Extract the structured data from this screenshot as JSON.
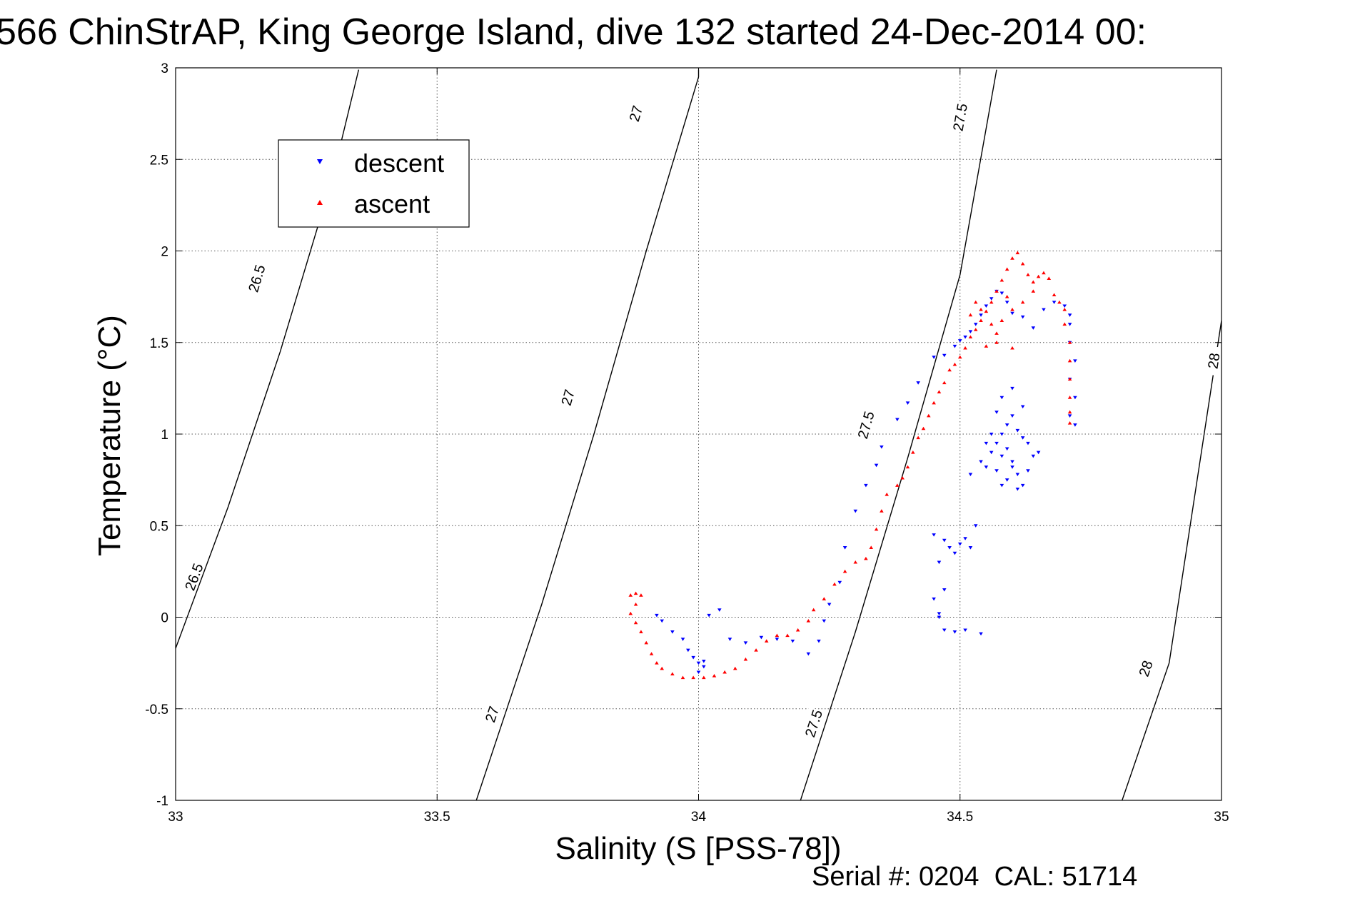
{
  "chart_data": {
    "type": "scatter",
    "title": "566 ChinStrAP, King George Island, dive 132 started 24-Dec-2014 00:",
    "xlabel": "Salinity (S [PSS-78])",
    "ylabel": "Temperature (°C)",
    "xlim": [
      33,
      35
    ],
    "ylim": [
      -1,
      3
    ],
    "xticks": [
      "33",
      "33.5",
      "34",
      "34.5",
      "35"
    ],
    "yticks": [
      "-1",
      "-0.5",
      "0",
      "0.5",
      "1",
      "1.5",
      "2",
      "2.5",
      "3"
    ],
    "grid": true,
    "legend": {
      "placement": "top-left",
      "entries": [
        "descent",
        "ascent"
      ]
    },
    "footer": "Serial #: 0204  CAL: 51714",
    "colors": {
      "descent": "#0000ff",
      "ascent": "#ff0000",
      "contour": "#000000"
    },
    "isopycnals": [
      {
        "label": "26.5",
        "points": [
          [
            33.0,
            -0.17
          ],
          [
            33.1,
            0.6
          ],
          [
            33.2,
            1.45
          ],
          [
            33.3,
            2.4
          ],
          [
            33.35,
            2.99
          ]
        ],
        "labels_at": [
          [
            33.035,
            0.22
          ],
          [
            33.155,
            1.85
          ]
        ]
      },
      {
        "label": "27",
        "points": [
          [
            33.575,
            -1.0
          ],
          [
            33.7,
            0.07
          ],
          [
            33.8,
            1.0
          ],
          [
            33.9,
            2.0
          ],
          [
            34.0,
            2.95
          ],
          [
            34.0,
            2.99
          ]
        ],
        "labels_at": [
          [
            33.605,
            -0.53
          ],
          [
            33.75,
            1.2
          ],
          [
            33.88,
            2.75
          ]
        ]
      },
      {
        "label": "27.5",
        "points": [
          [
            34.195,
            -1.0
          ],
          [
            34.3,
            -0.08
          ],
          [
            34.4,
            0.87
          ],
          [
            34.5,
            1.87
          ],
          [
            34.57,
            2.99
          ]
        ],
        "labels_at": [
          [
            34.22,
            -0.58
          ],
          [
            34.32,
            1.05
          ],
          [
            34.5,
            2.73
          ]
        ]
      },
      {
        "label": "28",
        "points": [
          [
            34.81,
            -1.0
          ],
          [
            34.9,
            -0.25
          ],
          [
            35.0,
            1.62
          ]
        ],
        "labels_at": [
          [
            34.855,
            -0.28
          ],
          [
            34.985,
            1.4
          ]
        ]
      }
    ],
    "series": [
      {
        "name": "descent",
        "marker": "triangle-down",
        "points": [
          [
            33.92,
            0.01
          ],
          [
            33.93,
            -0.02
          ],
          [
            33.95,
            -0.08
          ],
          [
            33.97,
            -0.12
          ],
          [
            33.98,
            -0.18
          ],
          [
            33.99,
            -0.22
          ],
          [
            34.0,
            -0.25
          ],
          [
            34.01,
            -0.27
          ],
          [
            34.01,
            -0.24
          ],
          [
            34.0,
            -0.3
          ],
          [
            34.02,
            0.01
          ],
          [
            34.04,
            0.04
          ],
          [
            34.06,
            -0.12
          ],
          [
            34.09,
            -0.14
          ],
          [
            34.12,
            -0.11
          ],
          [
            34.15,
            -0.12
          ],
          [
            34.18,
            -0.13
          ],
          [
            34.21,
            -0.2
          ],
          [
            34.23,
            -0.13
          ],
          [
            34.24,
            -0.02
          ],
          [
            34.25,
            0.07
          ],
          [
            34.27,
            0.19
          ],
          [
            34.28,
            0.38
          ],
          [
            34.3,
            0.58
          ],
          [
            34.32,
            0.72
          ],
          [
            34.34,
            0.83
          ],
          [
            34.35,
            0.93
          ],
          [
            34.38,
            1.08
          ],
          [
            34.4,
            1.17
          ],
          [
            34.42,
            1.28
          ],
          [
            34.45,
            1.42
          ],
          [
            34.47,
            1.43
          ],
          [
            34.49,
            1.48
          ],
          [
            34.5,
            1.51
          ],
          [
            34.51,
            1.53
          ],
          [
            34.52,
            1.56
          ],
          [
            34.53,
            1.6
          ],
          [
            34.54,
            1.65
          ],
          [
            34.55,
            1.7
          ],
          [
            34.56,
            1.74
          ],
          [
            34.57,
            1.78
          ],
          [
            34.58,
            1.77
          ],
          [
            34.59,
            1.72
          ],
          [
            34.6,
            1.66
          ],
          [
            34.62,
            1.64
          ],
          [
            34.64,
            1.58
          ],
          [
            34.66,
            1.68
          ],
          [
            34.68,
            1.72
          ],
          [
            34.7,
            1.7
          ],
          [
            34.71,
            1.65
          ],
          [
            34.71,
            1.6
          ],
          [
            34.71,
            1.5
          ],
          [
            34.72,
            1.4
          ],
          [
            34.71,
            1.3
          ],
          [
            34.72,
            1.2
          ],
          [
            34.71,
            1.1
          ],
          [
            34.72,
            1.05
          ],
          [
            34.45,
            0.45
          ],
          [
            34.46,
            0.3
          ],
          [
            34.47,
            0.42
          ],
          [
            34.48,
            0.38
          ],
          [
            34.49,
            0.35
          ],
          [
            34.5,
            0.4
          ],
          [
            34.51,
            0.43
          ],
          [
            34.52,
            0.38
          ],
          [
            34.53,
            0.5
          ],
          [
            34.47,
            0.15
          ],
          [
            34.46,
            0.02
          ],
          [
            34.46,
            0.0
          ],
          [
            34.47,
            -0.07
          ],
          [
            34.49,
            -0.08
          ],
          [
            34.51,
            -0.07
          ],
          [
            34.54,
            -0.09
          ],
          [
            34.45,
            0.1
          ],
          [
            34.52,
            0.78
          ],
          [
            34.54,
            0.85
          ],
          [
            34.55,
            0.82
          ],
          [
            34.56,
            0.9
          ],
          [
            34.57,
            0.95
          ],
          [
            34.58,
            1.0
          ],
          [
            34.59,
            1.05
          ],
          [
            34.6,
            1.1
          ],
          [
            34.61,
            1.02
          ],
          [
            34.62,
            0.98
          ],
          [
            34.6,
            0.82
          ],
          [
            34.59,
            0.75
          ],
          [
            34.58,
            0.72
          ],
          [
            34.61,
            0.7
          ],
          [
            34.63,
            0.8
          ],
          [
            34.64,
            0.88
          ],
          [
            34.62,
            1.15
          ],
          [
            34.6,
            1.25
          ],
          [
            34.58,
            1.2
          ],
          [
            34.57,
            1.12
          ],
          [
            34.56,
            1.0
          ],
          [
            34.55,
            0.95
          ],
          [
            34.63,
            0.95
          ],
          [
            34.65,
            0.9
          ],
          [
            34.61,
            0.78
          ],
          [
            34.6,
            0.85
          ],
          [
            34.59,
            0.92
          ],
          [
            34.58,
            0.88
          ],
          [
            34.57,
            0.8
          ],
          [
            34.62,
            0.72
          ]
        ]
      },
      {
        "name": "ascent",
        "marker": "triangle-up",
        "points": [
          [
            33.87,
            0.12
          ],
          [
            33.88,
            0.13
          ],
          [
            33.89,
            0.12
          ],
          [
            33.88,
            0.07
          ],
          [
            33.87,
            0.02
          ],
          [
            33.88,
            -0.03
          ],
          [
            33.89,
            -0.08
          ],
          [
            33.9,
            -0.14
          ],
          [
            33.91,
            -0.2
          ],
          [
            33.92,
            -0.25
          ],
          [
            33.93,
            -0.28
          ],
          [
            33.95,
            -0.31
          ],
          [
            33.97,
            -0.33
          ],
          [
            33.99,
            -0.33
          ],
          [
            34.01,
            -0.33
          ],
          [
            34.03,
            -0.32
          ],
          [
            34.05,
            -0.3
          ],
          [
            34.07,
            -0.28
          ],
          [
            34.09,
            -0.23
          ],
          [
            34.11,
            -0.18
          ],
          [
            34.13,
            -0.13
          ],
          [
            34.15,
            -0.1
          ],
          [
            34.17,
            -0.1
          ],
          [
            34.19,
            -0.07
          ],
          [
            34.21,
            -0.02
          ],
          [
            34.22,
            0.04
          ],
          [
            34.24,
            0.1
          ],
          [
            34.26,
            0.18
          ],
          [
            34.28,
            0.25
          ],
          [
            34.3,
            0.3
          ],
          [
            34.32,
            0.32
          ],
          [
            34.33,
            0.38
          ],
          [
            34.34,
            0.48
          ],
          [
            34.35,
            0.58
          ],
          [
            34.36,
            0.67
          ],
          [
            34.38,
            0.72
          ],
          [
            34.39,
            0.76
          ],
          [
            34.4,
            0.82
          ],
          [
            34.41,
            0.9
          ],
          [
            34.42,
            0.98
          ],
          [
            34.43,
            1.03
          ],
          [
            34.44,
            1.1
          ],
          [
            34.45,
            1.17
          ],
          [
            34.46,
            1.23
          ],
          [
            34.47,
            1.28
          ],
          [
            34.48,
            1.35
          ],
          [
            34.49,
            1.38
          ],
          [
            34.5,
            1.42
          ],
          [
            34.51,
            1.47
          ],
          [
            34.52,
            1.53
          ],
          [
            34.53,
            1.57
          ],
          [
            34.54,
            1.62
          ],
          [
            34.55,
            1.67
          ],
          [
            34.56,
            1.72
          ],
          [
            34.57,
            1.78
          ],
          [
            34.58,
            1.84
          ],
          [
            34.59,
            1.9
          ],
          [
            34.6,
            1.96
          ],
          [
            34.61,
            1.99
          ],
          [
            34.62,
            1.93
          ],
          [
            34.63,
            1.87
          ],
          [
            34.64,
            1.83
          ],
          [
            34.65,
            1.86
          ],
          [
            34.66,
            1.88
          ],
          [
            34.67,
            1.85
          ],
          [
            34.68,
            1.76
          ],
          [
            34.69,
            1.72
          ],
          [
            34.7,
            1.68
          ],
          [
            34.7,
            1.6
          ],
          [
            34.71,
            1.5
          ],
          [
            34.71,
            1.4
          ],
          [
            34.71,
            1.3
          ],
          [
            34.71,
            1.2
          ],
          [
            34.71,
            1.12
          ],
          [
            34.71,
            1.06
          ],
          [
            34.52,
            1.65
          ],
          [
            34.53,
            1.72
          ],
          [
            34.54,
            1.68
          ],
          [
            34.56,
            1.6
          ],
          [
            34.57,
            1.55
          ],
          [
            34.58,
            1.62
          ],
          [
            34.6,
            1.68
          ],
          [
            34.62,
            1.72
          ],
          [
            34.64,
            1.78
          ],
          [
            34.59,
            1.75
          ],
          [
            34.55,
            1.48
          ],
          [
            34.57,
            1.5
          ],
          [
            34.6,
            1.47
          ]
        ]
      }
    ]
  }
}
